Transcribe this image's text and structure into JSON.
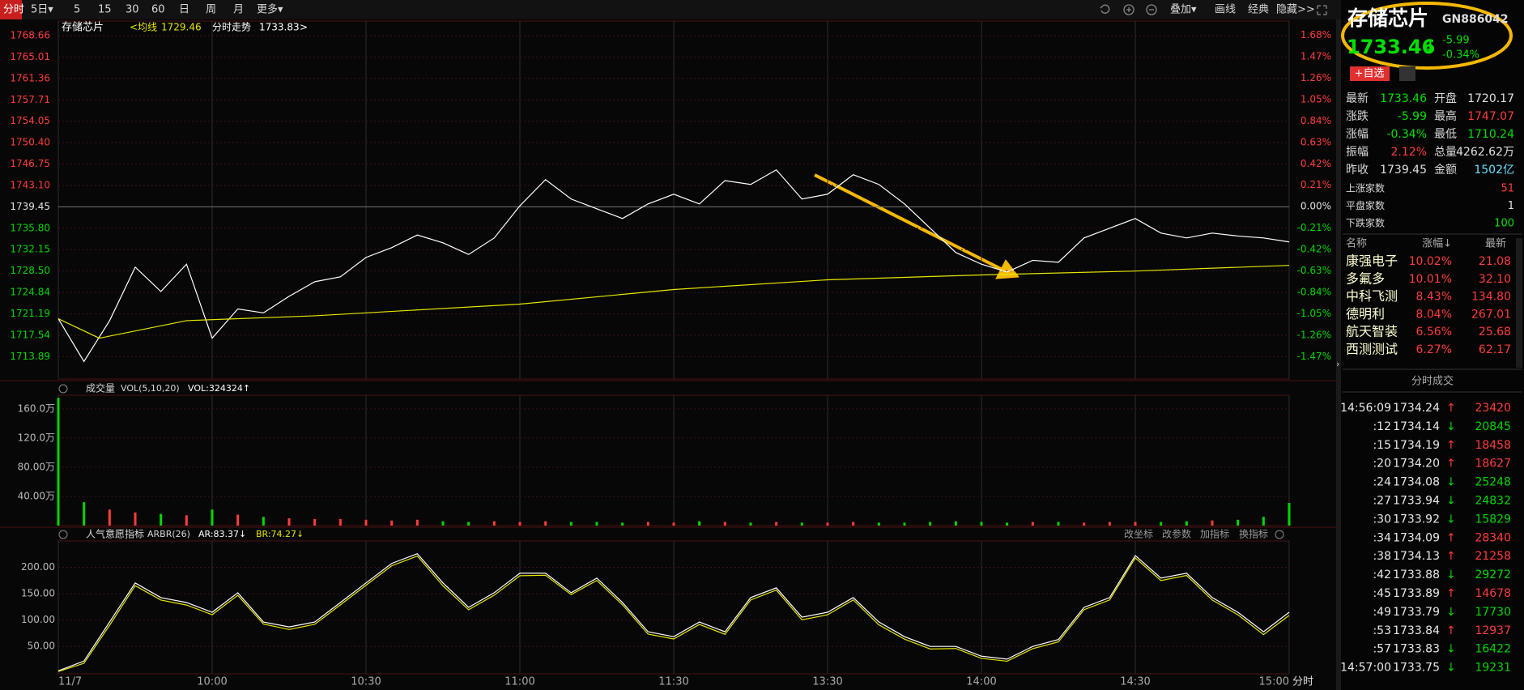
{
  "toolbar": {
    "left": [
      "分时",
      "5日▾",
      "5",
      "15",
      "30",
      "60",
      "日",
      "周",
      "月",
      "更多▾"
    ],
    "right": [
      "叠加▾",
      "画线",
      "经典",
      "隐藏>>"
    ]
  },
  "price_chart": {
    "type": "line",
    "name": "存储芯片",
    "avg_label": "<均线",
    "avg_value": 1729.46,
    "trend_label": "分时走势",
    "trend_value": 1733.83,
    "more": ">",
    "axis_unit": "分时",
    "prev_close": 1739.45,
    "xlim": [
      0,
      240
    ],
    "xticks": [
      {
        "value": 0,
        "label": "11/7"
      },
      {
        "value": 30,
        "label": "10:00"
      },
      {
        "value": 60,
        "label": "10:30"
      },
      {
        "value": 90,
        "label": "11:00"
      },
      {
        "value": 120,
        "label": "11:30"
      },
      {
        "value": 150,
        "label": "13:30"
      },
      {
        "value": 180,
        "label": "14:00"
      },
      {
        "value": 210,
        "label": "14:30"
      },
      {
        "value": 240,
        "label": "15:00"
      }
    ],
    "ylim": [
      1710.07,
      1771.15
    ],
    "yticks": [
      1768.66,
      1765.01,
      1761.36,
      1757.71,
      1754.05,
      {
        "value": 1750.4,
        "label": "1750.40"
      },
      1746.75,
      {
        "value": 1743.1,
        "label": "1743.10"
      },
      1739.45,
      {
        "value": 1735.8,
        "label": "1735.80"
      },
      1732.15,
      {
        "value": 1728.5,
        "label": "1728.50"
      },
      1724.84,
      1721.19,
      1717.54,
      1713.89
    ],
    "y2lim": [
      -1.69,
      1.82
    ],
    "y2ticks": [
      {
        "value": 1.68,
        "label": "1.68%"
      },
      {
        "value": 1.47,
        "label": "1.47%"
      },
      {
        "value": 1.26,
        "label": "1.26%"
      },
      {
        "value": 1.05,
        "label": "1.05%"
      },
      {
        "value": 0.84,
        "label": "0.84%"
      },
      {
        "value": 0.63,
        "label": "0.63%"
      },
      {
        "value": 0.42,
        "label": "0.42%"
      },
      {
        "value": 0.21,
        "label": "0.21%"
      },
      {
        "value": 0,
        "label": "0.00%"
      },
      {
        "value": -0.21,
        "label": "-0.21%"
      },
      {
        "value": -0.42,
        "label": "-0.42%"
      },
      {
        "value": -0.63,
        "label": "-0.63%"
      },
      {
        "value": -0.84,
        "label": "-0.84%"
      },
      {
        "value": -1.05,
        "label": "-1.05%"
      },
      {
        "value": -1.26,
        "label": "-1.26%"
      },
      {
        "value": -1.47,
        "label": "-1.47%"
      }
    ],
    "up_color": "#ff3c3c",
    "down_color": "#00d800",
    "flat_color": "#e0e0e0",
    "series": [
      {
        "color": "#ffffff",
        "x": [
          0,
          5,
          10,
          15,
          20,
          25,
          30,
          35,
          40,
          45,
          50,
          55,
          60,
          65,
          70,
          75,
          80,
          85,
          90,
          95,
          100,
          105,
          110,
          115,
          120,
          125,
          130,
          135,
          140,
          145,
          150,
          155,
          160,
          165,
          170,
          175,
          180,
          185,
          190,
          195,
          200,
          205,
          210,
          215,
          220,
          225,
          230,
          235,
          240
        ],
        "values": [
          1720.36,
          1713.06,
          1720.03,
          1729.16,
          1725.01,
          1729.66,
          1717.04,
          1722.02,
          1721.36,
          1724.18,
          1726.67,
          1727.5,
          1730.82,
          1732.48,
          1734.64,
          1733.31,
          1731.32,
          1734.14,
          1739.62,
          1744.1,
          1740.78,
          1739.12,
          1737.46,
          1739.95,
          1741.61,
          1739.95,
          1743.93,
          1743.27,
          1745.76,
          1740.78,
          1741.61,
          1744.93,
          1743.27,
          1739.95,
          1735.8,
          1731.65,
          1729.66,
          1728.33,
          1730.32,
          1729.99,
          1734.14,
          1735.8,
          1737.46,
          1734.97,
          1734.14,
          1734.97,
          1734.47,
          1734.14,
          1733.46
        ]
      },
      {
        "color": "#e6e600",
        "x": [
          0,
          8,
          25,
          50,
          90,
          120,
          150,
          180,
          210,
          240
        ],
        "values": [
          1720.36,
          1717.04,
          1720.03,
          1720.86,
          1722.85,
          1725.34,
          1727.0,
          1727.83,
          1728.49,
          1729.46
        ]
      }
    ]
  },
  "volume_chart": {
    "type": "bar",
    "title": "成交量",
    "params": "VOL(5,10,20)",
    "readout": "VOL:324324↑",
    "x": [
      0,
      5,
      10,
      15,
      20,
      25,
      30,
      35,
      40,
      45,
      50,
      55,
      60,
      65,
      70,
      75,
      80,
      85,
      90,
      95,
      100,
      105,
      110,
      115,
      120,
      125,
      130,
      135,
      140,
      145,
      150,
      155,
      160,
      165,
      170,
      175,
      180,
      185,
      190,
      195,
      200,
      205,
      210,
      215,
      220,
      225,
      230,
      235,
      240
    ],
    "values": [
      175,
      32,
      22,
      18,
      16,
      14,
      22,
      15,
      12,
      10,
      9,
      9,
      8,
      7,
      8,
      6,
      5,
      6,
      5,
      6,
      5,
      5,
      4,
      5,
      4,
      6,
      5,
      4,
      5,
      4,
      4,
      5,
      4,
      4,
      5,
      6,
      5,
      4,
      5,
      5,
      4,
      5,
      5,
      5,
      6,
      7,
      8,
      12,
      31
    ],
    "ylim": [
      0,
      178.7
    ],
    "yticks": [
      {
        "value": 160,
        "label": "160.0万"
      },
      {
        "value": 120,
        "label": "120.0万"
      },
      {
        "value": 80,
        "label": "80.00万"
      },
      {
        "value": 40,
        "label": "40.00万"
      }
    ]
  },
  "arbr_chart": {
    "type": "line",
    "title": "人气意愿指标",
    "params": "ARBR(26)",
    "buttons": [
      "改坐标",
      "改参数",
      "加指标",
      "换指标"
    ],
    "ylim": [
      -1.9,
      250
    ],
    "yticks": [
      {
        "value": 200,
        "label": "200.00"
      },
      {
        "value": 150,
        "label": "150.00"
      },
      {
        "value": 100,
        "label": "100.00"
      },
      {
        "value": 50,
        "label": "50.00"
      }
    ],
    "x": [
      0,
      5,
      10,
      15,
      20,
      25,
      30,
      35,
      40,
      45,
      50,
      55,
      60,
      65,
      70,
      75,
      80,
      85,
      90,
      95,
      100,
      105,
      110,
      115,
      120,
      125,
      130,
      135,
      140,
      145,
      150,
      155,
      160,
      165,
      170,
      175,
      180,
      185,
      190,
      195,
      200,
      205,
      210,
      215,
      220,
      225,
      230,
      235,
      240
    ],
    "series": [
      {
        "readout": "AR:83.37↓",
        "color": "#ffffff",
        "values": [
          3.7,
          22.2,
          96.3,
          170.4,
          142.6,
          133.3,
          114.8,
          151.8,
          96.3,
          87.0,
          96.3,
          133.3,
          170.4,
          207.4,
          225.9,
          170.4,
          124.1,
          151.8,
          188.9,
          188.9,
          151.8,
          179.6,
          133.3,
          77.8,
          68.5,
          96.3,
          77.8,
          142.6,
          161.1,
          105.5,
          114.8,
          142.6,
          96.3,
          68.5,
          50.0,
          50.0,
          31.5,
          25.9,
          50.0,
          63.0,
          124.1,
          142.6,
          222.2,
          179.6,
          188.9,
          142.6,
          114.8,
          77.8,
          114.8
        ]
      },
      {
        "readout": "BR:74.27↓",
        "color": "#e6e600",
        "values": [
          2.5,
          18.0,
          90.1,
          165.2,
          138.0,
          128.5,
          110.2,
          147.0,
          92.4,
          82.1,
          92.0,
          128.8,
          166.1,
          203.0,
          221.4,
          165.0,
          119.6,
          147.2,
          184.1,
          185.0,
          148.3,
          175.2,
          129.0,
          73.4,
          64.2,
          91.7,
          73.0,
          138.1,
          157.0,
          100.4,
          110.1,
          138.3,
          91.0,
          63.9,
          45.2,
          46.1,
          27.4,
          22.0,
          45.8,
          58.6,
          119.7,
          138.2,
          217.9,
          175.0,
          184.6,
          138.0,
          110.1,
          72.5,
          108.9
        ]
      }
    ]
  },
  "quote": {
    "name": "存储芯片",
    "code": "GN886042",
    "price": "1733.46",
    "arrow": "↓",
    "change": "-5.99",
    "change_pct": "-0.34%",
    "watch": "+自选",
    "rows": [
      [
        "最新",
        "1733.46",
        "开盘",
        "1720.17"
      ],
      [
        "涨跌",
        "-5.99",
        "最高",
        "1747.07"
      ],
      [
        "涨幅",
        "-0.34%",
        "最低",
        "1710.24"
      ],
      [
        "振幅",
        "2.12%",
        "总量",
        "4262.62万"
      ],
      [
        "昨收",
        "1739.45",
        "金额",
        "1502亿"
      ]
    ],
    "value_colors": [
      [
        "#00e000",
        "#e0e0e0"
      ],
      [
        "#00e000",
        "#ff3c3c"
      ],
      [
        "#00e000",
        "#00e000"
      ],
      [
        "#ff3c3c",
        "#e0e0e0"
      ],
      [
        "#e0e0e0",
        "#66e0ff"
      ]
    ],
    "breadth": [
      [
        "上涨家数",
        "51"
      ],
      [
        "平盘家数",
        "1"
      ],
      [
        "下跌家数",
        "100"
      ]
    ],
    "breadth_colors": [
      "#ff3c3c",
      "#e0e0e0",
      "#00e000"
    ]
  },
  "constituents": {
    "headers": [
      "名称",
      "涨幅↓",
      "最新"
    ],
    "rows": [
      [
        "康强电子",
        "10.02%",
        "21.08"
      ],
      [
        "多氟多",
        "10.01%",
        "32.10"
      ],
      [
        "中科飞测",
        "8.43%",
        "134.80"
      ],
      [
        "德明利",
        "8.04%",
        "267.01"
      ],
      [
        "航天智装",
        "6.56%",
        "25.68"
      ],
      [
        "西测测试",
        "6.27%",
        "62.17"
      ]
    ]
  },
  "trades": {
    "title": "分时成交",
    "rows": [
      [
        "14:56:09",
        "1734.24",
        "↑",
        "23420"
      ],
      [
        ":12",
        "1734.14",
        "↓",
        "20845"
      ],
      [
        ":15",
        "1734.19",
        "↑",
        "18458"
      ],
      [
        ":20",
        "1734.20",
        "↑",
        "18627"
      ],
      [
        ":24",
        "1734.08",
        "↓",
        "25248"
      ],
      [
        ":27",
        "1733.94",
        "↓",
        "24832"
      ],
      [
        ":30",
        "1733.92",
        "↓",
        "15829"
      ],
      [
        ":34",
        "1734.09",
        "↑",
        "28340"
      ],
      [
        ":38",
        "1734.13",
        "↑",
        "21258"
      ],
      [
        ":42",
        "1733.88",
        "↓",
        "29272"
      ],
      [
        ":45",
        "1733.89",
        "↑",
        "14678"
      ],
      [
        ":49",
        "1733.79",
        "↓",
        "17730"
      ],
      [
        ":53",
        "1733.84",
        "↑",
        "12937"
      ],
      [
        ":57",
        "1733.83",
        "↓",
        "16422"
      ],
      [
        "14:57:00",
        "1733.75",
        "↓",
        "19231"
      ]
    ]
  }
}
